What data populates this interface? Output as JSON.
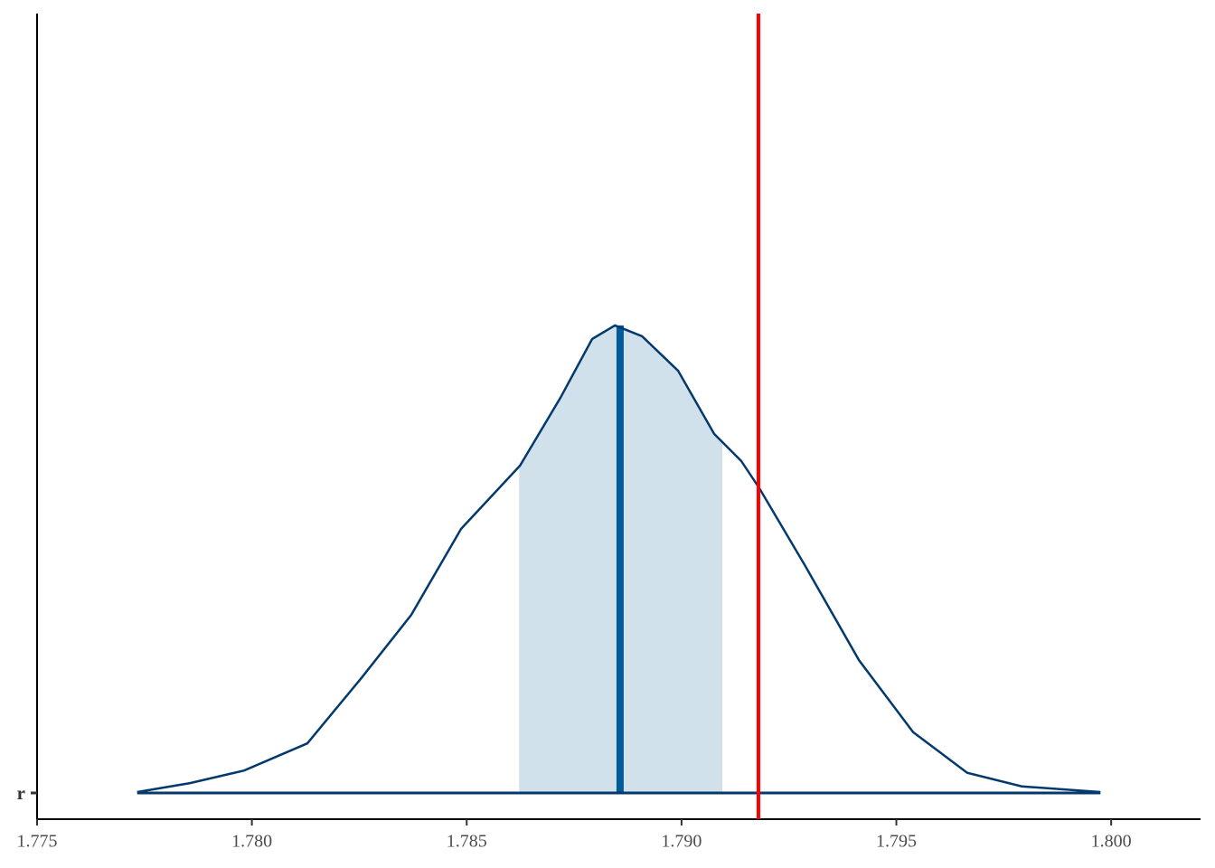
{
  "chart_data": {
    "type": "area-density",
    "categories": [
      "r"
    ],
    "x": [
      1.77733,
      1.77856,
      1.77982,
      1.78129,
      1.78255,
      1.78371,
      1.78487,
      1.78624,
      1.78718,
      1.78792,
      1.78845,
      1.78908,
      1.78992,
      1.79076,
      1.79139,
      1.79181,
      1.79287,
      1.79413,
      1.79539,
      1.79665,
      1.79792,
      1.79975
    ],
    "values": [
      0.002,
      0.021,
      0.048,
      0.106,
      0.246,
      0.381,
      0.565,
      0.7,
      0.845,
      0.971,
      1.0,
      0.977,
      0.903,
      0.768,
      0.71,
      0.652,
      0.487,
      0.284,
      0.13,
      0.043,
      0.014,
      0.002
    ],
    "interval": [
      1.78622,
      1.79095
    ],
    "median": 1.78857,
    "reference_line": 1.79179,
    "color": "#03396c",
    "interval_color": "#d1e1ec",
    "median_color": "#005b96",
    "reference_color": "#ff0000",
    "xlim": [
      1.775,
      1.80208
    ],
    "ylim": [
      0,
      1.667
    ],
    "xticks": [
      1.775,
      {
        "value": 1.78,
        "label": "1.780"
      },
      1.785,
      {
        "value": 1.79,
        "label": "1.790"
      },
      1.795,
      {
        "value": 1.8,
        "label": "1.800"
      }
    ]
  }
}
